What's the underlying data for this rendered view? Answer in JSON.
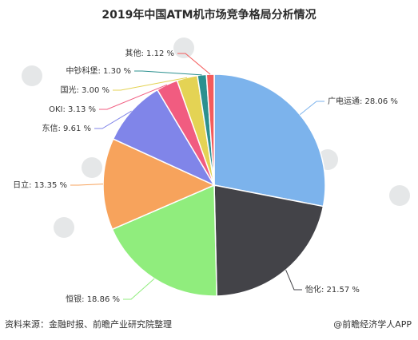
{
  "title": "2019年中国ATM机市场竞争格局分析情况",
  "footer": {
    "source": "资料来源：金融时报、前瞻产业研究院整理",
    "brand": "@前瞻经济学人APP"
  },
  "watermark": {
    "text": "前瞻产业研究院"
  },
  "colors": {
    "guangdian": "#7cb3ec",
    "yihua": "#434348",
    "hengyin": "#90ed7d",
    "rili": "#f7a35c",
    "dongxin": "#8085e9",
    "oki": "#f15c80",
    "guoguang": "#e4d354",
    "zhongchao": "#2b908f",
    "other": "#f45b5b"
  },
  "chart_data": {
    "type": "pie",
    "title": "2019年中国ATM机市场竞争格局分析情况",
    "unit": "%",
    "slices": [
      {
        "name": "广电运通",
        "value": 28.06,
        "label": "广电运通: 28.06 %",
        "color": "#7cb3ec"
      },
      {
        "name": "怡化",
        "value": 21.57,
        "label": "怡化: 21.57 %",
        "color": "#434348"
      },
      {
        "name": "恒银",
        "value": 18.86,
        "label": "恒银: 18.86 %",
        "color": "#90ed7d"
      },
      {
        "name": "日立",
        "value": 13.35,
        "label": "日立: 13.35 %",
        "color": "#f7a35c"
      },
      {
        "name": "东信",
        "value": 9.61,
        "label": "东信: 9.61 %",
        "color": "#8085e9"
      },
      {
        "name": "OKI",
        "value": 3.13,
        "label": "OKI: 3.13 %",
        "color": "#f15c80"
      },
      {
        "name": "国光",
        "value": 3.0,
        "label": "国光: 3.00 %",
        "color": "#e4d354"
      },
      {
        "name": "中钞科堡",
        "value": 1.3,
        "label": "中钞科堡: 1.30 %",
        "color": "#2b908f"
      },
      {
        "name": "其他",
        "value": 1.12,
        "label": "其他: 1.12 %",
        "color": "#f45b5b"
      }
    ],
    "legend": "none"
  }
}
